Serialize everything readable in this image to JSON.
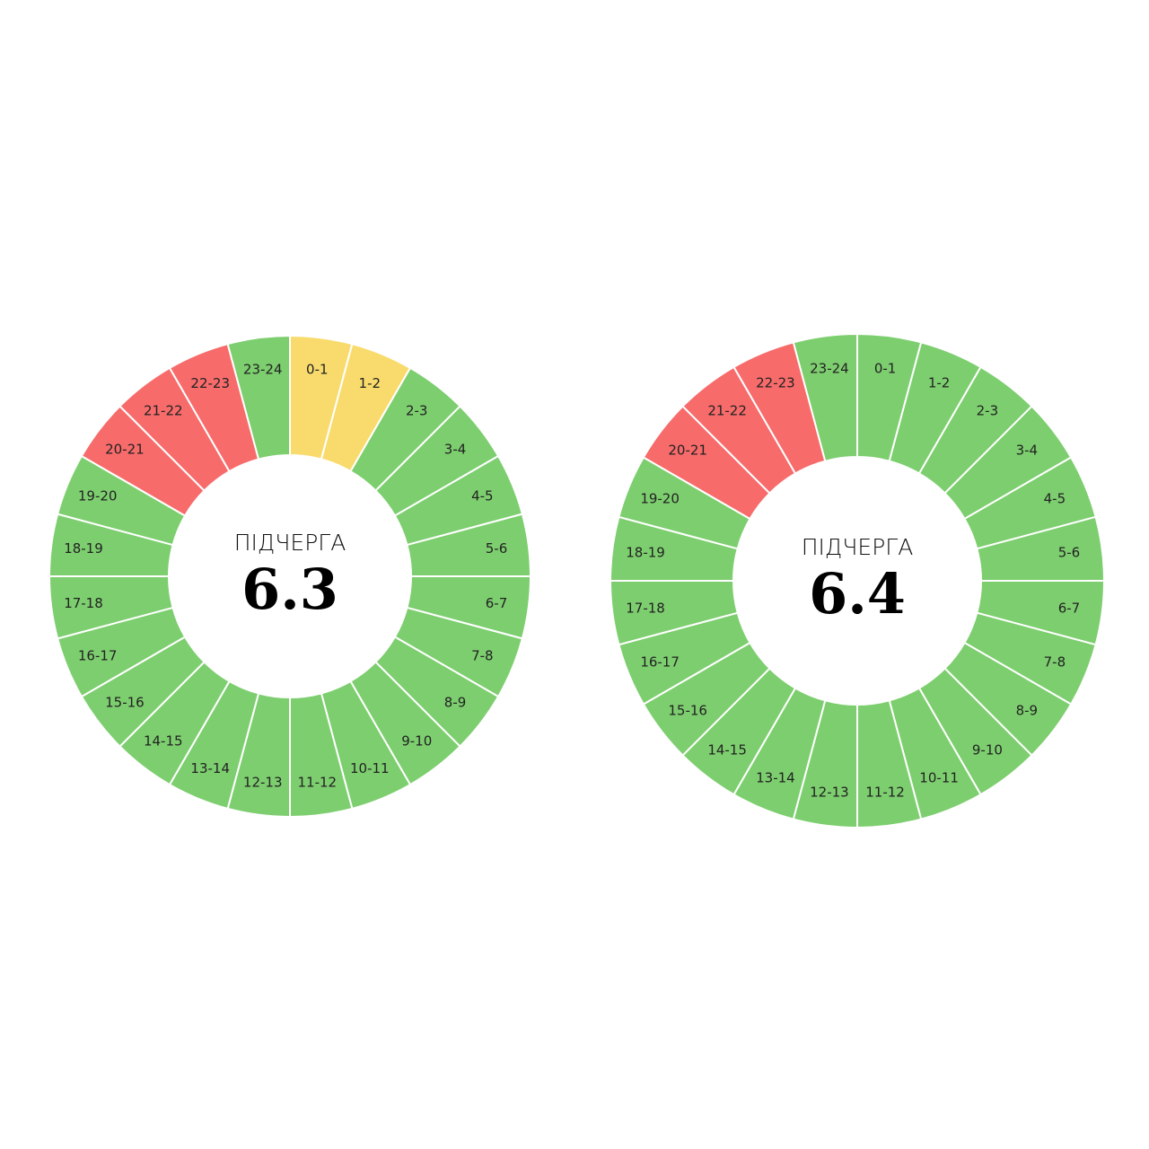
{
  "schedules": [
    {
      "caption": "ПІДЧЕРГА",
      "number": "6.3",
      "slots": [
        {
          "label": "0-1",
          "color": "#f9db6d"
        },
        {
          "label": "1-2",
          "color": "#f9db6d"
        },
        {
          "label": "2-3",
          "color": "#7dce6f"
        },
        {
          "label": "3-4",
          "color": "#7dce6f"
        },
        {
          "label": "4-5",
          "color": "#7dce6f"
        },
        {
          "label": "5-6",
          "color": "#7dce6f"
        },
        {
          "label": "6-7",
          "color": "#7dce6f"
        },
        {
          "label": "7-8",
          "color": "#7dce6f"
        },
        {
          "label": "8-9",
          "color": "#7dce6f"
        },
        {
          "label": "9-10",
          "color": "#7dce6f"
        },
        {
          "label": "10-11",
          "color": "#7dce6f"
        },
        {
          "label": "11-12",
          "color": "#7dce6f"
        },
        {
          "label": "12-13",
          "color": "#7dce6f"
        },
        {
          "label": "13-14",
          "color": "#7dce6f"
        },
        {
          "label": "14-15",
          "color": "#7dce6f"
        },
        {
          "label": "15-16",
          "color": "#7dce6f"
        },
        {
          "label": "16-17",
          "color": "#7dce6f"
        },
        {
          "label": "17-18",
          "color": "#7dce6f"
        },
        {
          "label": "18-19",
          "color": "#7dce6f"
        },
        {
          "label": "19-20",
          "color": "#7dce6f"
        },
        {
          "label": "20-21",
          "color": "#f76b6b"
        },
        {
          "label": "21-22",
          "color": "#f76b6b"
        },
        {
          "label": "22-23",
          "color": "#f76b6b"
        },
        {
          "label": "23-24",
          "color": "#7dce6f"
        }
      ]
    },
    {
      "caption": "ПІДЧЕРГА",
      "number": "6.4",
      "slots": [
        {
          "label": "0-1",
          "color": "#7dce6f"
        },
        {
          "label": "1-2",
          "color": "#7dce6f"
        },
        {
          "label": "2-3",
          "color": "#7dce6f"
        },
        {
          "label": "3-4",
          "color": "#7dce6f"
        },
        {
          "label": "4-5",
          "color": "#7dce6f"
        },
        {
          "label": "5-6",
          "color": "#7dce6f"
        },
        {
          "label": "6-7",
          "color": "#7dce6f"
        },
        {
          "label": "7-8",
          "color": "#7dce6f"
        },
        {
          "label": "8-9",
          "color": "#7dce6f"
        },
        {
          "label": "9-10",
          "color": "#7dce6f"
        },
        {
          "label": "10-11",
          "color": "#7dce6f"
        },
        {
          "label": "11-12",
          "color": "#7dce6f"
        },
        {
          "label": "12-13",
          "color": "#7dce6f"
        },
        {
          "label": "13-14",
          "color": "#7dce6f"
        },
        {
          "label": "14-15",
          "color": "#7dce6f"
        },
        {
          "label": "15-16",
          "color": "#7dce6f"
        },
        {
          "label": "16-17",
          "color": "#7dce6f"
        },
        {
          "label": "17-18",
          "color": "#7dce6f"
        },
        {
          "label": "18-19",
          "color": "#7dce6f"
        },
        {
          "label": "19-20",
          "color": "#7dce6f"
        },
        {
          "label": "20-21",
          "color": "#f76b6b"
        },
        {
          "label": "21-22",
          "color": "#f76b6b"
        },
        {
          "label": "22-23",
          "color": "#f76b6b"
        },
        {
          "label": "23-24",
          "color": "#7dce6f"
        }
      ]
    }
  ]
}
